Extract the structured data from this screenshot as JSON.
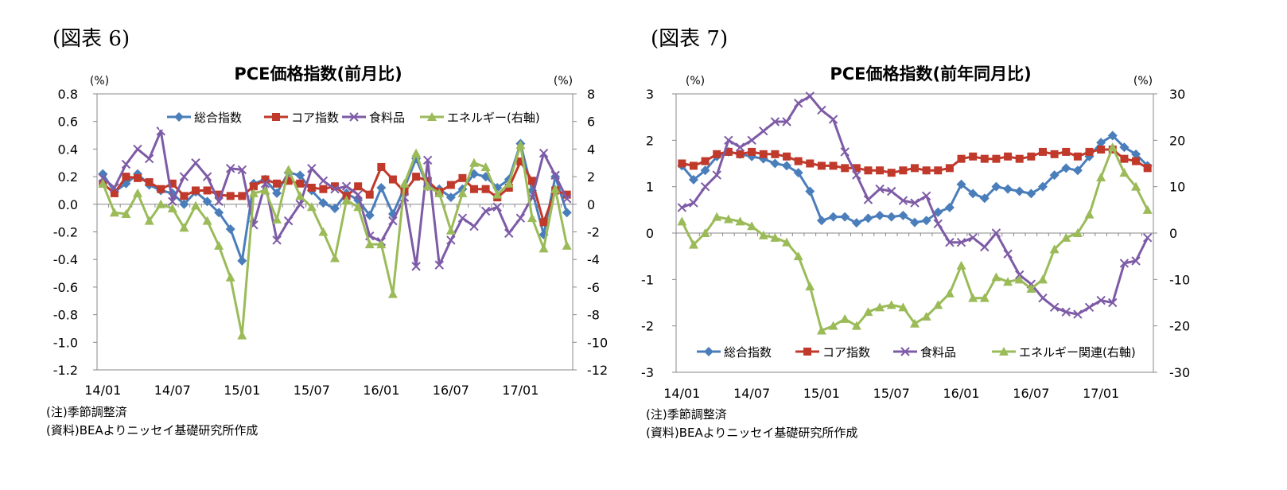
{
  "figures": [
    {
      "label": "(図表 6)",
      "note1": "(注)季節調整済",
      "note2": "(資料)BEAよりニッセイ基礎研究所作成"
    },
    {
      "label": "(図表 7)",
      "note1": "(注)季節調整済",
      "note2": "(資料)BEAよりニッセイ基礎研究所作成"
    }
  ],
  "chart_data": [
    {
      "type": "line",
      "title": "PCE価格指数(前月比)",
      "left_unit": "(%)",
      "right_unit": "(%)",
      "x_labels": [
        "14/01",
        "14/07",
        "15/01",
        "15/07",
        "16/01",
        "16/07",
        "17/01"
      ],
      "x_label_index": [
        0,
        6,
        12,
        18,
        24,
        30,
        36
      ],
      "ylim_left": [
        -1.2,
        0.8
      ],
      "yticks_left": [
        "0.8",
        "0.6",
        "0.4",
        "0.2",
        "0.0",
        "-0.2",
        "-0.4",
        "-0.6",
        "-0.8",
        "-1.0",
        "-1.2"
      ],
      "ylim_right": [
        -12,
        8
      ],
      "yticks_right": [
        "8",
        "6",
        "4",
        "2",
        "0",
        "-2",
        "-4",
        "-6",
        "-8",
        "-10",
        "-12"
      ],
      "legend_placement": "top",
      "series": [
        {
          "name": "総合指数",
          "axis": "left",
          "color": "#4a7ebb",
          "marker": "diamond",
          "values": [
            0.22,
            0.09,
            0.15,
            0.22,
            0.14,
            0.1,
            0.08,
            0.0,
            0.09,
            0.02,
            -0.06,
            -0.18,
            -0.41,
            0.15,
            0.18,
            0.08,
            0.23,
            0.21,
            0.1,
            0.01,
            -0.03,
            0.08,
            0.03,
            -0.08,
            0.12,
            -0.07,
            0.12,
            0.33,
            0.13,
            0.11,
            0.05,
            0.11,
            0.22,
            0.2,
            0.12,
            0.18,
            0.44,
            0.1,
            -0.22,
            0.2,
            -0.06
          ]
        },
        {
          "name": "コア指数",
          "axis": "left",
          "color": "#c0392b",
          "marker": "square",
          "values": [
            0.15,
            0.08,
            0.2,
            0.19,
            0.16,
            0.11,
            0.15,
            0.06,
            0.1,
            0.1,
            0.07,
            0.06,
            0.06,
            0.13,
            0.18,
            0.15,
            0.17,
            0.15,
            0.12,
            0.11,
            0.13,
            0.06,
            0.13,
            0.07,
            0.27,
            0.18,
            0.09,
            0.2,
            0.17,
            0.09,
            0.14,
            0.19,
            0.11,
            0.11,
            0.05,
            0.12,
            0.31,
            0.17,
            -0.13,
            0.1,
            0.07
          ]
        },
        {
          "name": "食料品",
          "axis": "left",
          "color": "#7d5ba6",
          "marker": "x",
          "values": [
            0.19,
            0.12,
            0.29,
            0.4,
            0.33,
            0.53,
            0.02,
            0.2,
            0.3,
            0.2,
            0.02,
            0.26,
            0.25,
            -0.15,
            0.15,
            -0.26,
            -0.12,
            0.0,
            0.26,
            0.17,
            0.11,
            0.13,
            0.07,
            -0.23,
            -0.27,
            -0.12,
            0.05,
            -0.45,
            0.32,
            -0.44,
            -0.26,
            -0.1,
            -0.16,
            -0.05,
            -0.02,
            -0.21,
            -0.1,
            0.05,
            0.37,
            0.21,
            0.04
          ]
        },
        {
          "name": "エネルギー(右軸)",
          "axis": "right",
          "color": "#9bbb59",
          "marker": "triangle",
          "values": [
            1.5,
            -0.6,
            -0.7,
            0.8,
            -1.2,
            0.0,
            -0.3,
            -1.7,
            -0.1,
            -1.2,
            -3.0,
            -5.3,
            -9.5,
            0.8,
            1.0,
            -1.1,
            2.5,
            0.6,
            -0.2,
            -2.0,
            -3.9,
            0.3,
            -0.2,
            -2.9,
            -2.9,
            -6.5,
            1.5,
            3.7,
            1.3,
            0.8,
            -1.9,
            0.8,
            3.0,
            2.7,
            0.7,
            1.5,
            4.3,
            -1.0,
            -3.2,
            1.1,
            -3.0
          ]
        }
      ]
    },
    {
      "type": "line",
      "title": "PCE価格指数(前年同月比)",
      "left_unit": "(%)",
      "right_unit": "(%)",
      "x_labels": [
        "14/01",
        "14/07",
        "15/01",
        "15/07",
        "16/01",
        "16/07",
        "17/01"
      ],
      "x_label_index": [
        0,
        6,
        12,
        18,
        24,
        30,
        36
      ],
      "ylim_left": [
        -3,
        3
      ],
      "yticks_left": [
        "3",
        "2",
        "1",
        "0",
        "-1",
        "-2",
        "-3"
      ],
      "ylim_right": [
        -30,
        30
      ],
      "yticks_right": [
        "30",
        "20",
        "10",
        "0",
        "-10",
        "-20",
        "-30"
      ],
      "legend_placement": "bottom",
      "series": [
        {
          "name": "総合指数",
          "axis": "left",
          "color": "#4a7ebb",
          "marker": "diamond",
          "values": [
            1.45,
            1.15,
            1.35,
            1.65,
            1.75,
            1.7,
            1.65,
            1.6,
            1.5,
            1.45,
            1.3,
            0.9,
            0.27,
            0.35,
            0.35,
            0.22,
            0.32,
            0.38,
            0.35,
            0.38,
            0.23,
            0.27,
            0.45,
            0.55,
            1.05,
            0.85,
            0.75,
            1.0,
            0.95,
            0.9,
            0.85,
            1.0,
            1.25,
            1.4,
            1.35,
            1.65,
            1.95,
            2.1,
            1.85,
            1.7,
            1.45
          ]
        },
        {
          "name": "コア指数",
          "axis": "left",
          "color": "#c0392b",
          "marker": "square",
          "values": [
            1.5,
            1.45,
            1.55,
            1.7,
            1.75,
            1.7,
            1.75,
            1.7,
            1.7,
            1.65,
            1.55,
            1.5,
            1.45,
            1.45,
            1.4,
            1.4,
            1.35,
            1.35,
            1.3,
            1.35,
            1.4,
            1.35,
            1.35,
            1.4,
            1.6,
            1.65,
            1.6,
            1.6,
            1.65,
            1.6,
            1.65,
            1.75,
            1.7,
            1.75,
            1.65,
            1.75,
            1.8,
            1.8,
            1.6,
            1.55,
            1.4
          ]
        },
        {
          "name": "食料品",
          "axis": "left",
          "color": "#7d5ba6",
          "marker": "x",
          "values": [
            0.55,
            0.65,
            1.0,
            1.25,
            2.0,
            1.85,
            2.0,
            2.2,
            2.4,
            2.4,
            2.8,
            2.95,
            2.65,
            2.45,
            1.75,
            1.25,
            0.72,
            0.95,
            0.9,
            0.7,
            0.65,
            0.8,
            0.2,
            -0.2,
            -0.2,
            -0.1,
            -0.3,
            0.0,
            -0.45,
            -0.9,
            -1.1,
            -1.4,
            -1.6,
            -1.7,
            -1.75,
            -1.6,
            -1.45,
            -1.5,
            -0.65,
            -0.6,
            -0.1
          ]
        },
        {
          "name": "エネルギー関連(右軸)",
          "axis": "right",
          "color": "#9bbb59",
          "marker": "triangle",
          "values": [
            2.5,
            -2.5,
            0.0,
            3.5,
            3.0,
            2.5,
            1.5,
            -0.5,
            -1.0,
            -2.0,
            -5.0,
            -11.5,
            -21.0,
            -20.0,
            -18.5,
            -20.0,
            -17.0,
            -16.0,
            -15.5,
            -16.0,
            -19.5,
            -18.0,
            -15.5,
            -13.0,
            -7.0,
            -14.0,
            -14.0,
            -9.5,
            -10.5,
            -10.0,
            -12.0,
            -10.0,
            -3.5,
            -1.0,
            0.0,
            4.0,
            12.0,
            18.5,
            13.0,
            10.0,
            5.0
          ]
        }
      ]
    }
  ]
}
